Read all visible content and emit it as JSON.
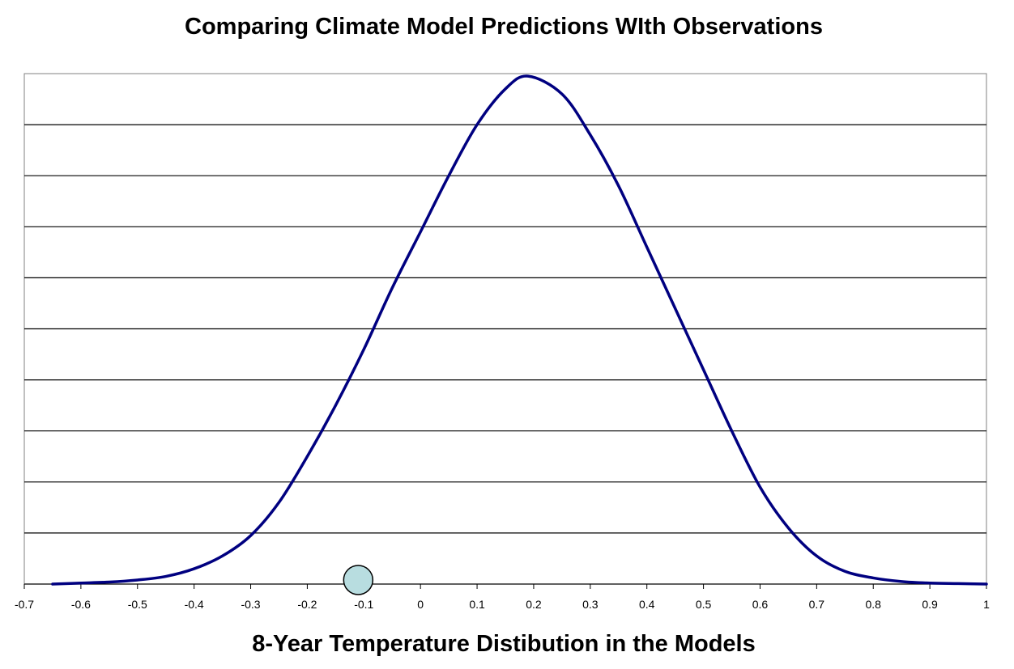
{
  "chart_data": {
    "type": "line",
    "title": "Comparing Climate Model Predictions WIth Observations",
    "xlabel": "8-Year Temperature Distibution in the Models",
    "ylabel": "",
    "xlim": [
      -0.7,
      1.0
    ],
    "ylim": [
      0,
      1.0
    ],
    "x_ticks": [
      "-0.7",
      "-0.6",
      "-0.5",
      "-0.4",
      "-0.3",
      "-0.2",
      "-0.1",
      "0",
      "0.1",
      "0.2",
      "0.3",
      "0.4",
      "0.5",
      "0.6",
      "0.7",
      "0.8",
      "0.9",
      "1"
    ],
    "y_tick_labels_shown": false,
    "horizontal_grid": true,
    "gridline_values": [
      0.1,
      0.2,
      0.3,
      0.4,
      0.5,
      0.6,
      0.7,
      0.8,
      0.9
    ],
    "legend": "none",
    "series": [
      {
        "kind": "curve",
        "color": "#000080",
        "x": [
          -0.65,
          -0.6,
          -0.55,
          -0.5,
          -0.45,
          -0.4,
          -0.35,
          -0.3,
          -0.25,
          -0.2,
          -0.15,
          -0.1,
          -0.05,
          0.0,
          0.05,
          0.1,
          0.15,
          0.19,
          0.25,
          0.3,
          0.35,
          0.4,
          0.45,
          0.5,
          0.55,
          0.6,
          0.65,
          0.7,
          0.75,
          0.8,
          0.85,
          0.9,
          0.95,
          1.0
        ],
        "y": [
          0.0,
          0.002,
          0.004,
          0.008,
          0.015,
          0.03,
          0.055,
          0.095,
          0.16,
          0.25,
          0.35,
          0.46,
          0.58,
          0.69,
          0.8,
          0.9,
          0.97,
          0.995,
          0.96,
          0.88,
          0.78,
          0.66,
          0.54,
          0.42,
          0.3,
          0.19,
          0.11,
          0.055,
          0.025,
          0.012,
          0.005,
          0.002,
          0.001,
          0.0
        ]
      },
      {
        "kind": "point",
        "color": "#b8dde0",
        "x": [
          -0.11
        ],
        "y": [
          0.008
        ]
      }
    ]
  }
}
